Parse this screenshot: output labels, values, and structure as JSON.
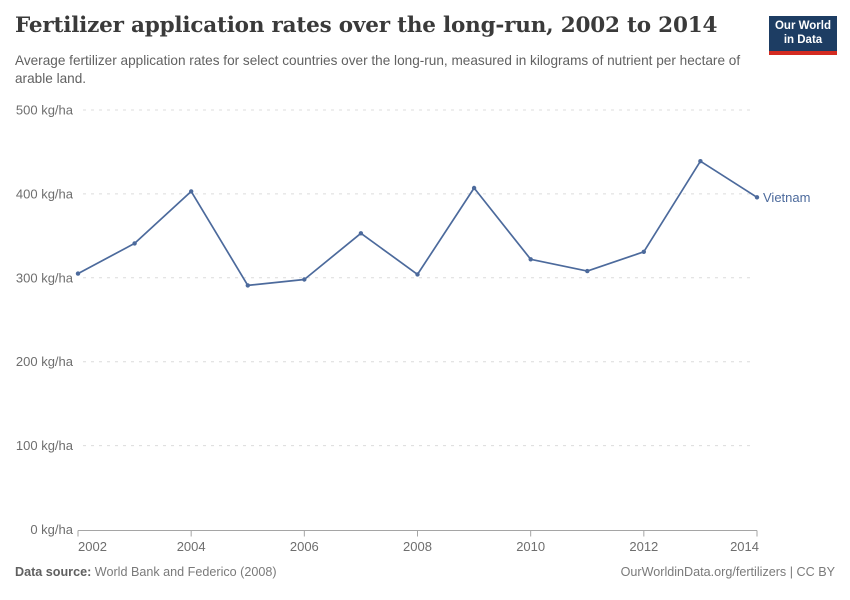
{
  "header": {
    "logo": {
      "line1": "Our World",
      "line2": "in Data",
      "bg_color": "#1d3d63",
      "accent_color": "#d42b21"
    }
  },
  "chart_data": {
    "type": "line",
    "title": "Fertilizer application rates over the long-run, 2002 to 2014",
    "subtitle": "Average fertilizer application rates for select countries over the long-run, measured in kilograms of nutrient per hectare of arable land.",
    "x": [
      2002,
      2003,
      2004,
      2005,
      2006,
      2007,
      2008,
      2009,
      2010,
      2011,
      2012,
      2013,
      2014
    ],
    "series": [
      {
        "name": "Vietnam",
        "color": "#4C6A9C",
        "values": [
          305,
          341,
          403,
          291,
          298,
          353,
          304,
          407,
          322,
          308,
          331,
          439,
          396
        ]
      }
    ],
    "xlabel": "",
    "ylabel": "",
    "unit": "kg/ha",
    "xlim": [
      2002,
      2014
    ],
    "ylim": [
      0,
      500
    ],
    "grid": true,
    "legend_position": "inline-end-of-line",
    "x_ticks": [
      2002,
      2004,
      2006,
      2008,
      2010,
      2012,
      2014
    ],
    "x_tick_labels": [
      "2002",
      "2004",
      "2006",
      "2008",
      "2010",
      "2012",
      "2014"
    ],
    "y_ticks": [
      0,
      100,
      200,
      300,
      400,
      500
    ],
    "y_tick_labels": [
      "0 kg/ha",
      "100 kg/ha",
      "200 kg/ha",
      "300 kg/ha",
      "400 kg/ha",
      "500 kg/ha"
    ]
  },
  "footer": {
    "source_label": "Data source:",
    "source_text": " World Bank and Federico (2008)",
    "credit": "OurWorldinData.org/fertilizers | CC BY"
  }
}
